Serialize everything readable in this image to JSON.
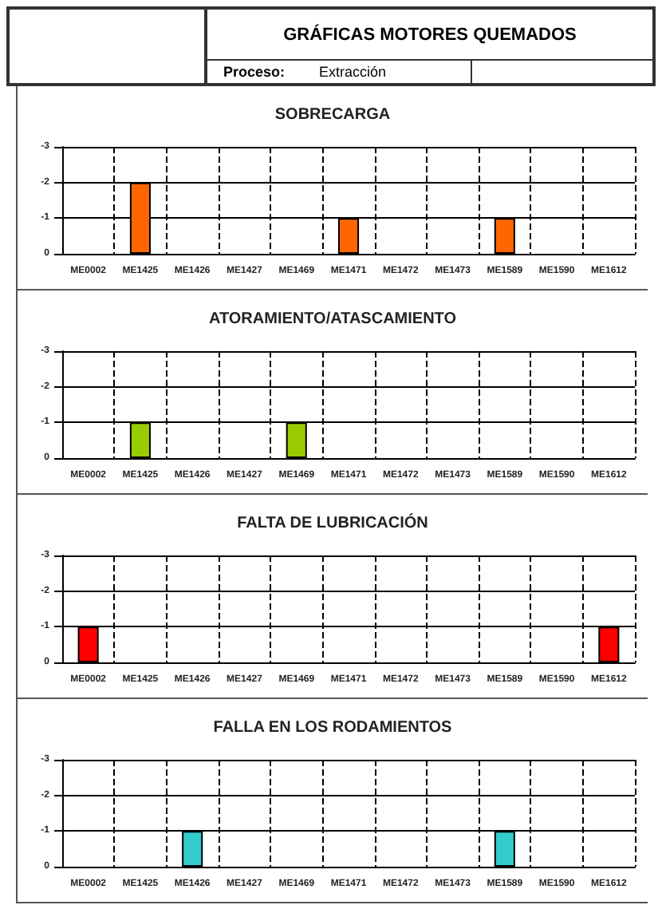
{
  "chart_data": [
    {
      "type": "other",
      "title": "GRÁFICAS MOTORES QUEMADOS",
      "annotations": [
        "Proceso:",
        "Extracción"
      ]
    },
    {
      "type": "bar",
      "title": "SOBRECARGA",
      "categories": [
        "ME0002",
        "ME1425",
        "ME1426",
        "ME1427",
        "ME1469",
        "ME1471",
        "ME1472",
        "ME1473",
        "ME1589",
        "ME1590",
        "ME1612"
      ],
      "values": [
        0,
        -2,
        0,
        0,
        0,
        -1,
        0,
        0,
        -1,
        0,
        0
      ],
      "color": "#ff6600",
      "ylim": [
        0,
        -3
      ],
      "yticks": [
        0,
        -1,
        -2,
        -3
      ],
      "grid": true
    },
    {
      "type": "bar",
      "title": "ATORAMIENTO/ATASCAMIENTO",
      "categories": [
        "ME0002",
        "ME1425",
        "ME1426",
        "ME1427",
        "ME1469",
        "ME1471",
        "ME1472",
        "ME1473",
        "ME1589",
        "ME1590",
        "ME1612"
      ],
      "values": [
        0,
        -1,
        0,
        0,
        -1,
        0,
        0,
        0,
        0,
        0,
        0
      ],
      "color": "#99cc00",
      "ylim": [
        0,
        -3
      ],
      "yticks": [
        0,
        -1,
        -2,
        -3
      ],
      "grid": true
    },
    {
      "type": "bar",
      "title": "FALTA DE LUBRICACIÓN",
      "categories": [
        "ME0002",
        "ME1425",
        "ME1426",
        "ME1427",
        "ME1469",
        "ME1471",
        "ME1472",
        "ME1473",
        "ME1589",
        "ME1590",
        "ME1612"
      ],
      "values": [
        -1,
        0,
        0,
        0,
        0,
        0,
        0,
        0,
        0,
        0,
        -1
      ],
      "color": "#ff0000",
      "ylim": [
        0,
        -3
      ],
      "yticks": [
        0,
        -1,
        -2,
        -3
      ],
      "grid": true
    },
    {
      "type": "bar",
      "title": "FALLA EN LOS RODAMIENTOS",
      "categories": [
        "ME0002",
        "ME1425",
        "ME1426",
        "ME1427",
        "ME1469",
        "ME1471",
        "ME1472",
        "ME1473",
        "ME1589",
        "ME1590",
        "ME1612"
      ],
      "values": [
        0,
        0,
        -1,
        0,
        0,
        0,
        0,
        0,
        -1,
        0,
        0
      ],
      "color": "#33cccc",
      "ylim": [
        0,
        -3
      ],
      "yticks": [
        0,
        -1,
        -2,
        -3
      ],
      "grid": true
    }
  ]
}
